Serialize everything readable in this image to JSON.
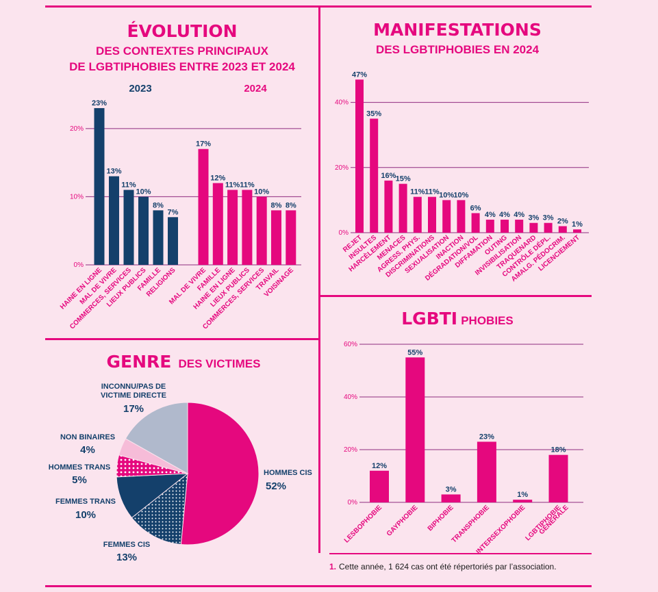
{
  "colors": {
    "pink": "#e5087e",
    "navy": "#14406b",
    "light_pink": "#f6bcd8",
    "grey_blue": "#b0b9cc",
    "background": "#fbe4ee"
  },
  "evolution": {
    "title": "ÉVOLUTION",
    "subtitle_1": "DES CONTEXTES PRINCIPAUX",
    "subtitle_2": "DE LGBTIPHOBIES ENTRE 2023 ET 2024"
  },
  "manifestations": {
    "title": "MANIFESTATIONS",
    "subtitle": "DES LGBTIPHOBIES EN 2024"
  },
  "genre": {
    "title_strong": "GENRE",
    "title_rest": "DES VICTIMES"
  },
  "lgbti": {
    "title_strong": "LGBTI",
    "title_rest": "PHOBIES"
  },
  "footnote": {
    "number": "1.",
    "text": "Cette année, 1 624 cas ont été répertoriés par l’association."
  },
  "chart_data": [
    {
      "type": "bar",
      "name": "evolution",
      "series": [
        {
          "name": "2023",
          "color": "#14406b",
          "categories": [
            "HAINE EN LIGNE",
            "MAL DE VIVRE",
            "COMMERCES, SERVICES",
            "LIEUX PUBLICS",
            "FAMILLE",
            "RELIGIONS"
          ],
          "values": [
            23,
            13,
            11,
            10,
            8,
            7
          ]
        },
        {
          "name": "2024",
          "color": "#e5087e",
          "categories": [
            "MAL DE VIVRE",
            "FAMILLE",
            "HAINE EN LIGNE",
            "LIEUX PUBLICS",
            "COMMERCES, SERVICES",
            "TRAVAIL",
            "VOISINAGE"
          ],
          "values": [
            17,
            12,
            11,
            11,
            10,
            8,
            8
          ]
        }
      ],
      "value_labels": [
        "23%",
        "13%",
        "11%",
        "10%",
        "8%",
        "7%",
        "17%",
        "12%",
        "11%",
        "11%",
        "10%",
        "8%",
        "8%"
      ],
      "yticks": [
        "0%",
        "10%",
        "20%"
      ],
      "ylim": [
        0,
        24
      ],
      "grid": true
    },
    {
      "type": "bar",
      "name": "manifestations",
      "categories": [
        "REJET",
        "INSULTES",
        "HARCÈLEMENT",
        "MENACES",
        "AGRESS. PHYS.",
        "DISCRIMINATIONS",
        "SEXUALISATION",
        "INACTION",
        "DÉGRADATION/VOL",
        "DIFFAMATION",
        "OUTING",
        "INVISIBILISATION",
        "TRAQUENARD",
        "CONTRÔLE DÉPL.",
        "AMALG. PÉDOCRIM.",
        "LICENCIEMENT"
      ],
      "values": [
        47,
        35,
        16,
        15,
        11,
        11,
        10,
        10,
        6,
        4,
        4,
        4,
        3,
        3,
        2,
        1
      ],
      "value_labels": [
        "47%",
        "35%",
        "16%",
        "15%",
        "11%",
        "11%",
        "10%",
        "10%",
        "6%",
        "4%",
        "4%",
        "4%",
        "3%",
        "3%",
        "2%",
        "1%"
      ],
      "yticks": [
        "0%",
        "20%",
        "40%"
      ],
      "ylim": [
        0,
        50
      ],
      "grid": true
    },
    {
      "type": "pie",
      "name": "genre",
      "slices": [
        {
          "label": "HOMMES CIS",
          "value": 52,
          "value_label": "52%",
          "color": "#e5087e"
        },
        {
          "label": "FEMMES CIS",
          "value": 13,
          "value_label": "13%",
          "color": "#14406b"
        },
        {
          "label": "FEMMES TRANS",
          "value": 10,
          "value_label": "10%",
          "color": "#14406b"
        },
        {
          "label": "HOMMES TRANS",
          "value": 5,
          "value_label": "5%",
          "color": "#e5087e"
        },
        {
          "label": "NON BINAIRES",
          "value": 4,
          "value_label": "4%",
          "color": "#f6bcd8"
        },
        {
          "label_line_1": "INCONNU/PAS DE",
          "label_line_2": "VICTIME DIRECTE",
          "value": 17,
          "value_label": "17%",
          "color": "#b0b9cc"
        }
      ]
    },
    {
      "type": "bar",
      "name": "lgbtiphobies",
      "categories": [
        "LESBOPHOBIE",
        "GAYPHOBIE",
        "BIPHOBIE",
        "TRANSPHOBIE",
        "INTERSEXOPHOBIE",
        "LGBTIPHOBIE GÉNÉRALE"
      ],
      "category_lines": [
        [
          "LESBOPHOBIE"
        ],
        [
          "GAYPHOBIE"
        ],
        [
          "BIPHOBIE"
        ],
        [
          "TRANSPHOBIE"
        ],
        [
          "INTERSEXOPHOBIE"
        ],
        [
          "LGBTIPHOBIE",
          "GÉNÉRALE"
        ]
      ],
      "values": [
        12,
        55,
        3,
        23,
        1,
        18
      ],
      "value_labels": [
        "12%",
        "55%",
        "3%",
        "23%",
        "1%",
        "18%"
      ],
      "yticks": [
        "0%",
        "20%",
        "40%",
        "60%"
      ],
      "ylim": [
        0,
        60
      ],
      "grid": true
    }
  ]
}
